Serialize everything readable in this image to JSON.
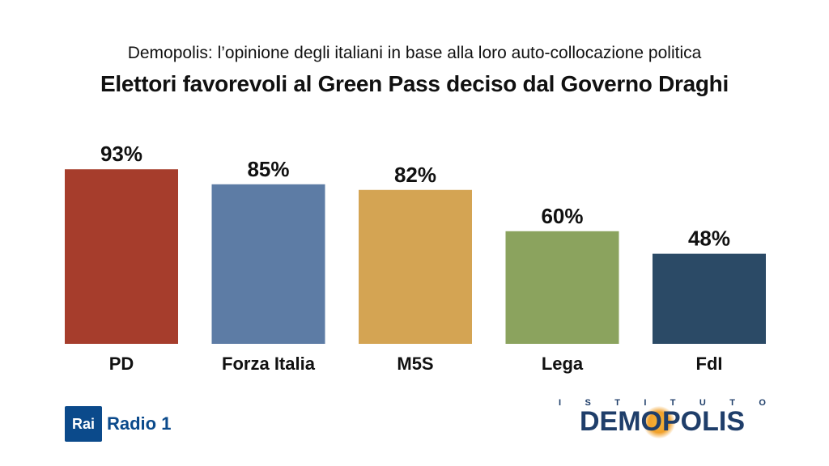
{
  "header": {
    "subtitle": "Demopolis: l’opinione degli italiani in base alla loro auto-collocazione politica",
    "title": "Elettori favorevoli al Green Pass deciso dal Governo Draghi"
  },
  "chart_data": {
    "type": "bar",
    "categories": [
      "PD",
      "Forza Italia",
      "M5S",
      "Lega",
      "FdI"
    ],
    "values": [
      93,
      85,
      82,
      60,
      48
    ],
    "value_labels": [
      "93%",
      "85%",
      "82%",
      "60%",
      "48%"
    ],
    "colors": [
      "#a63d2c",
      "#5d7ca5",
      "#d4a453",
      "#8ba35e",
      "#2b4a66"
    ],
    "title": "Elettori favorevoli al Green Pass deciso dal Governo Draghi",
    "subtitle": "Demopolis: l’opinione degli italiani in base alla loro auto-collocazione politica",
    "ylim": [
      0,
      100
    ],
    "grid": false,
    "legend": "none"
  },
  "logos": {
    "rai_box": "Rai",
    "rai_radio": "Radio 1",
    "demopolis_top": [
      "I",
      "S",
      "T",
      "I",
      "T",
      "U",
      "T",
      "O"
    ],
    "demopolis_word": "DEMOPOLIS"
  }
}
